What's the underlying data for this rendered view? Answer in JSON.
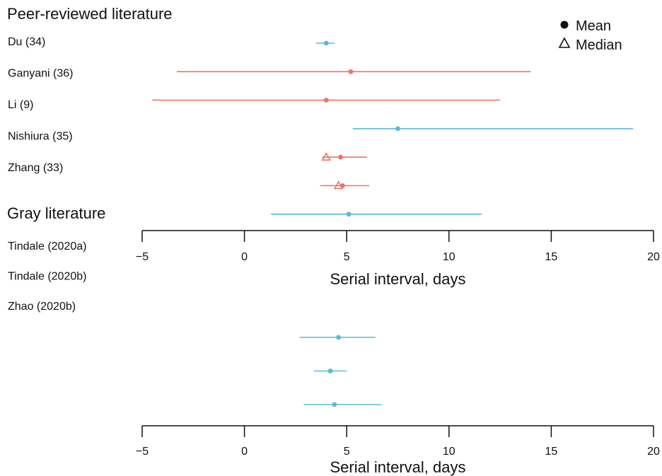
{
  "colors": {
    "red": "#e8766b",
    "blue": "#5ab9dc",
    "axis": "#111111"
  },
  "legend": {
    "mean_label": "Mean",
    "median_label": "Median",
    "position": "top-right"
  },
  "chart_data": [
    {
      "type": "forest",
      "section_title": "Peer-reviewed literature",
      "xlabel": "Serial interval, days",
      "xlim": [
        -5,
        20
      ],
      "ticks": [
        "−5",
        "0",
        "5",
        "10",
        "15",
        "20"
      ],
      "tick_values": [
        -5,
        0,
        5,
        10,
        15,
        20
      ],
      "labels": [
        "Du (34)",
        "Ganyani (36)",
        "Li (9)",
        "Nishiura (35)",
        "Zhang (33)"
      ],
      "rows": [
        {
          "mean": 4.0,
          "low": 3.5,
          "high": 4.4,
          "color": "blue"
        },
        {
          "mean": 5.2,
          "low": -3.3,
          "high": 14.0,
          "color": "red"
        },
        {
          "mean": 4.0,
          "low": -4.5,
          "high": 12.5,
          "color": "red"
        },
        {
          "mean": 7.5,
          "low": 5.3,
          "high": 19.0,
          "color": "blue"
        },
        {
          "mean": 4.7,
          "median": 4.0,
          "low": 3.8,
          "high": 6.0,
          "color": "red"
        },
        {
          "mean": 4.8,
          "median": 4.6,
          "low": 3.7,
          "high": 6.1,
          "color": "red"
        },
        {
          "mean": 5.1,
          "low": 1.3,
          "high": 11.6,
          "color": "blue"
        }
      ]
    },
    {
      "type": "forest",
      "section_title": "Gray literature",
      "xlabel": "Serial interval, days",
      "xlim": [
        -5,
        20
      ],
      "ticks": [
        "−5",
        "0",
        "5",
        "10",
        "15",
        "20"
      ],
      "tick_values": [
        -5,
        0,
        5,
        10,
        15,
        20
      ],
      "labels": [
        "Tindale (2020a)",
        "Tindale (2020b)",
        "Zhao (2020b)"
      ],
      "rows": [
        {
          "mean": 4.6,
          "low": 2.7,
          "high": 6.4,
          "color": "blue"
        },
        {
          "mean": 4.2,
          "low": 3.4,
          "high": 5.0,
          "color": "blue"
        },
        {
          "mean": 4.4,
          "low": 2.9,
          "high": 6.7,
          "color": "blue"
        }
      ]
    }
  ]
}
